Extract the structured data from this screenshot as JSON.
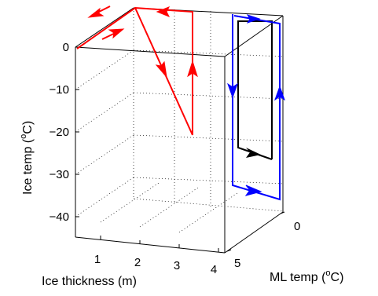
{
  "chart_data": {
    "type": "line",
    "projection": "3d",
    "x_axis": {
      "label": "Ice thickness (m)",
      "range": [
        0,
        4
      ],
      "ticks": [
        "1",
        "2",
        "3",
        "4"
      ]
    },
    "y_axis": {
      "label_prefix": "ML temp (",
      "label_sup": "o",
      "label_suffix": "C)",
      "range": [
        0,
        5
      ],
      "ticks": [
        "0",
        "5"
      ]
    },
    "z_axis": {
      "label_prefix": "Ice temp (",
      "label_sup": "o",
      "label_suffix": "C)",
      "range": [
        -45,
        0
      ],
      "ticks": [
        "0",
        "−10",
        "−20",
        "−30",
        "−40"
      ]
    },
    "grid": true,
    "colors": {
      "red": "#ff0000",
      "blue": "#0000ff",
      "black": "#000000"
    }
  }
}
